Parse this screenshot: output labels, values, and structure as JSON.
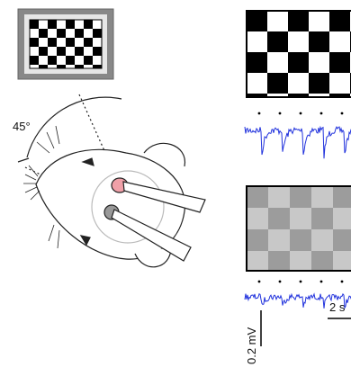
{
  "labels": {
    "angle": "45°",
    "voltage_scale": "0.2 mV",
    "time_scale": "2 s"
  }
}
